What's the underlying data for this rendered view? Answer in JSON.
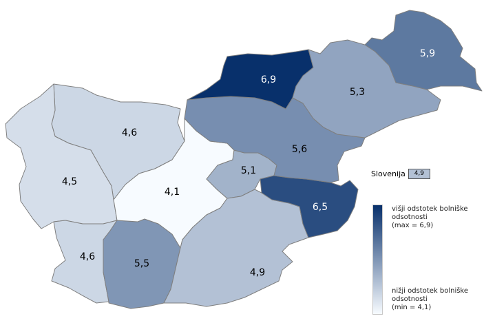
{
  "colors": {
    "high": "#08306b",
    "low": "#f7fbff",
    "border": "#7f7f7f",
    "dark_text": "#000000",
    "light_text": "#ffffff"
  },
  "color_scale": {
    "min": 4.1,
    "max": 6.9
  },
  "regions": [
    {
      "id": "gorenjska",
      "value": 4.6,
      "label": "4,6"
    },
    {
      "id": "goriska",
      "value": 4.5,
      "label": "4,5"
    },
    {
      "id": "obalno-kraska",
      "value": 4.6,
      "label": "4,6"
    },
    {
      "id": "primorsko-notranjska",
      "value": 5.5,
      "label": "5,5"
    },
    {
      "id": "osrednjeslovenska",
      "value": 4.1,
      "label": "4,1"
    },
    {
      "id": "zasavska",
      "value": 5.1,
      "label": "5,1"
    },
    {
      "id": "jugovzhodna-slovenija",
      "value": 4.9,
      "label": "4,9"
    },
    {
      "id": "posavska",
      "value": 6.5,
      "label": "6,5"
    },
    {
      "id": "savinjska",
      "value": 5.6,
      "label": "5,6"
    },
    {
      "id": "koroska",
      "value": 6.9,
      "label": "6,9"
    },
    {
      "id": "podravska",
      "value": 5.3,
      "label": "5,3"
    },
    {
      "id": "pomurska",
      "value": 5.9,
      "label": "5,9"
    }
  ],
  "national": {
    "name": "Slovenija",
    "value": 4.9,
    "label": "4,9"
  },
  "legend": {
    "high_lines": [
      "višji odstotek bolniške",
      "odsotnosti",
      "(max = 6,9)"
    ],
    "low_lines": [
      "nižji odstotek bolniške",
      "odsotnosti",
      "(min = 4,1)"
    ]
  }
}
